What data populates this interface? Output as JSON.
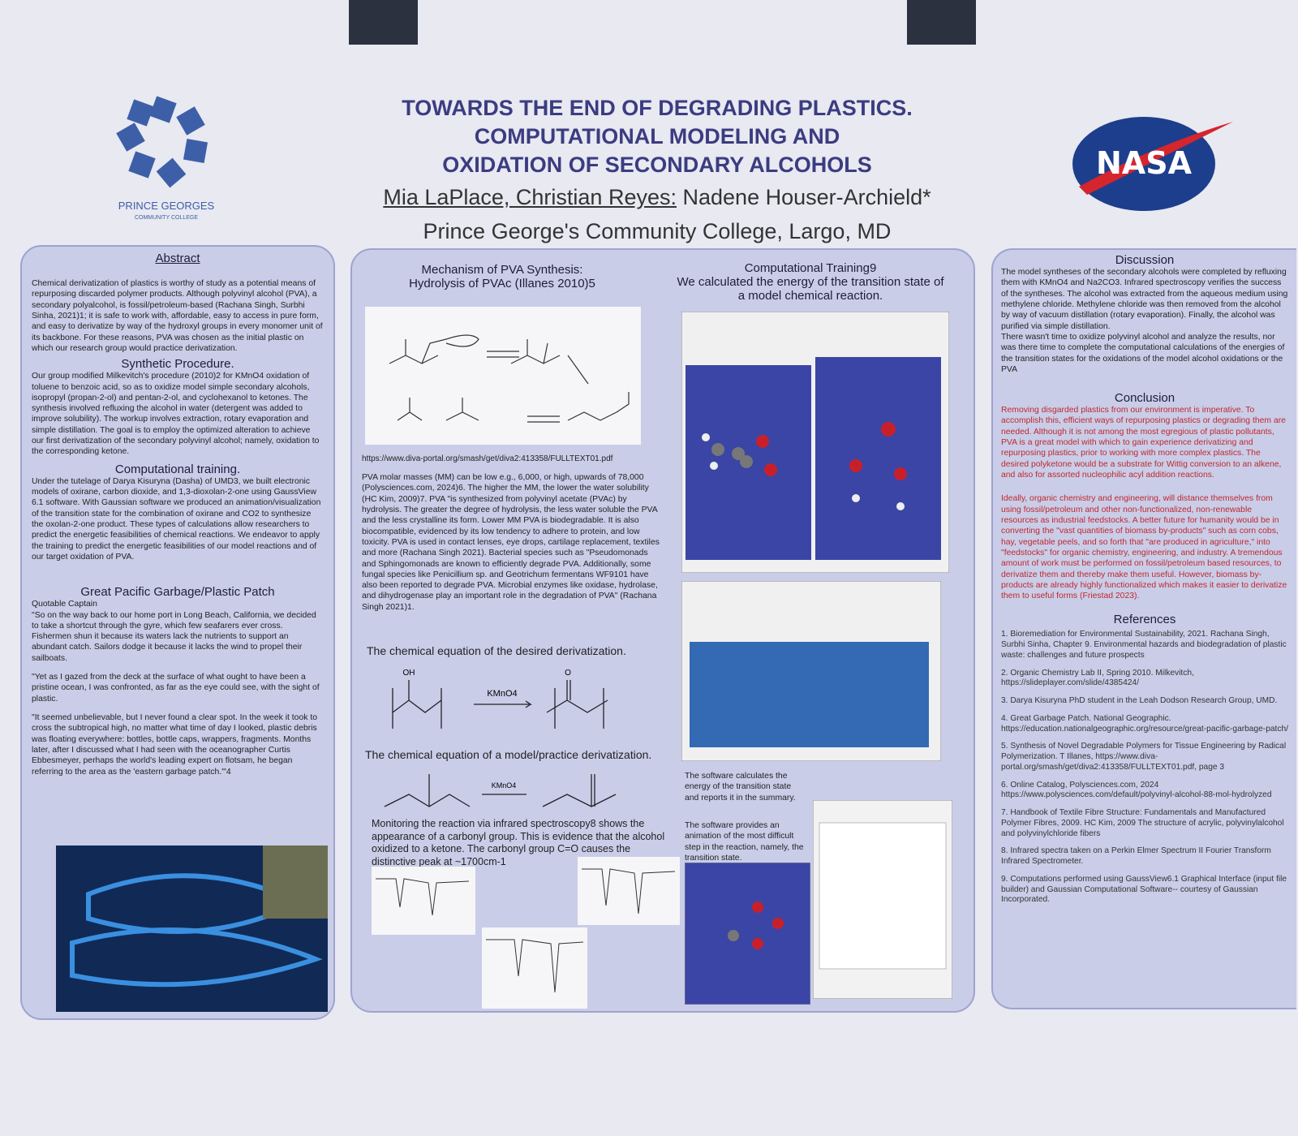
{
  "header": {
    "title_lines": [
      "TOWARDS THE END OF DEGRADING PLASTICS.",
      "COMPUTATIONAL MODELING AND",
      "OXIDATION OF SECONDARY ALCOHOLS"
    ],
    "students": "Mia LaPlace, Christian Reyes:",
    "advisor": "Nadene Houser-Archield*",
    "affiliation": "Prince George's Community College, Largo, MD",
    "left_logo": [
      "PRINCE GEORGES",
      "COMMUNITY COLLEGE"
    ],
    "right_logo": "NASA"
  },
  "left": {
    "abstract_heading": "Abstract",
    "abstract": "Chemical derivatization of plastics is worthy of study as a potential means of repurposing discarded polymer products. Although polyvinyl alcohol (PVA), a secondary polyalcohol, is fossil/petroleum-based (Rachana Singh, Surbhi Sinha, 2021)1; it is safe to work with, affordable, easy to access in pure form, and easy to derivatize by way of the hydroxyl groups in every monomer unit of its backbone. For these reasons, PVA was chosen as the initial plastic on which our research group would practice derivatization.",
    "synthetic_heading": "Synthetic Procedure.",
    "synthetic": "Our group modified Milkevitch's procedure (2010)2 for KMnO4 oxidation of toluene to benzoic acid, so as to oxidize model simple secondary alcohols, isopropyl (propan-2-ol) and pentan-2-ol, and cyclohexanol to ketones. The synthesis involved refluxing the alcohol in water (detergent was added to improve solubility). The workup involves extraction, rotary evaporation and simple distillation. The goal is to employ the optimized alteration to achieve our first derivatization of the secondary polyvinyl alcohol; namely, oxidation to the corresponding ketone.",
    "computational_heading": "Computational training.",
    "computational": "Under the tutelage of Darya Kisuryna (Dasha) of UMD3, we built electronic models of oxirane, carbon dioxide, and 1,3-dioxolan-2-one using GaussView 6.1 software. With Gaussian software we produced an animation/visualization of the transition state for the combination of oxirane and CO2 to synthesize the oxolan-2-one product. These types of calculations allow researchers to predict the energetic feasibilities of chemical reactions. We endeavor to apply the training to predict the energetic feasibilities of our model reactions and of our target oxidation of PVA.",
    "patch_heading": "Great Pacific Garbage/Plastic Patch",
    "patch_sub": "Quotable Captain",
    "quotes": [
      "\"So on the way back to our home port in Long Beach, California, we decided to take a shortcut through the gyre, which few seafarers ever cross. Fishermen shun it because its waters lack the nutrients to support an abundant catch. Sailors dodge it because it lacks the wind to propel their sailboats.",
      "\"Yet as I gazed from the deck at the surface of what ought to have been a pristine ocean, I was confronted, as far as the eye could see, with the sight of plastic.",
      "\"It seemed unbelievable, but I never found a clear spot. In the week it took to cross the subtropical high, no matter what time of day I looked, plastic debris was floating everywhere: bottles, bottle caps, wrappers, fragments. Months later, after I discussed what I had seen with the oceanographer Curtis Ebbesmeyer, perhaps the world's leading expert on flotsam, he began referring to the area as the 'eastern garbage patch.'\"4"
    ]
  },
  "middle": {
    "mechanism_heading": "Mechanism of PVA Synthesis:",
    "mechanism_sub": "Hydrolysis of PVAc (Illanes 2010)5",
    "url": "https://www.diva-portal.org/smash/get/diva2:413358/FULLTEXT01.pdf",
    "pva_text": "PVA molar masses (MM) can be low e.g., 6,000, or high, upwards of 78,000 (Polysciences.com, 2024)6. The higher the MM, the lower the water solubility (HC Kim, 2009)7. PVA \"is synthesized from polyvinyl acetate (PVAc) by hydrolysis. The greater the degree of hydrolysis, the less water soluble the PVA and the less crystalline its form. Lower MM PVA is biodegradable. It is also biocompatible, evidenced by its low tendency to adhere to protein, and low toxicity. PVA is used in contact lenses, eye drops, cartilage replacement, textiles and more (Rachana Singh 2021). Bacterial species such as \"Pseudomonads and Sphingomonads are known to efficiently degrade PVA. Additionally, some fungal species like Penicillium sp. and Geotrichum fermentans WF9101 have also been reported to degrade PVA. Microbial enzymes like oxidase, hydrolase, and dihydrogenase play an important role in the degradation of PVA\" (Rachana Singh 2021)1.",
    "eq1_heading": "The chemical equation of the desired derivatization.",
    "reagent": "KMnO4",
    "eq2_heading": "The chemical equation of a model/practice derivatization.",
    "monitoring": "Monitoring the reaction via infrared spectroscopy8 shows the appearance of a carbonyl group. This is evidence that the alcohol oxidized to a ketone. The carbonyl group C=O causes the distinctive peak at ~1700cm-1"
  },
  "computation": {
    "heading": "Computational Training9",
    "intro": "We calculated the energy of the transition state of a model chemical reaction.",
    "caption1": "The software calculates the energy of the transition state and reports it in the summary.",
    "caption2": "The software provides an animation of the most difficult step in the reaction, namely, the transition state."
  },
  "right": {
    "discussion_heading": "Discussion",
    "discussion": [
      "The model syntheses of the secondary alcohols were completed by refluxing them with KMnO4 and Na2CO3. Infrared spectroscopy verifies the success of the syntheses. The alcohol was extracted from the aqueous medium using methylene chloride. Methylene chloride was then removed from the alcohol by way of vacuum distillation (rotary evaporation). Finally, the alcohol was purified via simple distillation.",
      "There wasn't time to oxidize polyvinyl alcohol and analyze the results, nor was there time to complete the computational calculations of the energies of the transition states for the oxidations of the model alcohol oxidations or the PVA"
    ],
    "conclusion_heading": "Conclusion",
    "conclusion": [
      "Removing disgarded plastics from our environment is imperative. To accomplish this, efficient ways of repurposing plastics or degrading them are needed. Although it is not among the most egregious of plastic pollutants, PVA is a great model with which to gain experience derivatizing and repurposing plastics, prior to working with more complex plastics. The desired polyketone would be a substrate for Wittig conversion to an alkene, and also for assorted nucleophilic acyl addition reactions.",
      "Ideally, organic chemistry and engineering, will distance themselves from using fossil/petroleum and other non-functionalized, non-renewable resources as industrial feedstocks. A better future for humanity would be in converting the \"vast quantities of biomass by-products\" such as corn cobs, hay, vegetable peels, and so forth that \"are produced in agriculture,\" into \"feedstocks\" for organic chemistry, engineering, and industry. A tremendous amount of work must be performed on fossil/petroleum based resources, to derivatize them and thereby make them useful. However, biomass by-products are already highly functionalized which makes it easier to derivatize them to useful forms (Friestad 2023)."
    ],
    "references_heading": "References",
    "references": [
      "1. Bioremediation for Environmental Sustainability, 2021. Rachana Singh, Surbhi Sinha, Chapter 9. Environmental hazards and biodegradation of plastic waste: challenges and future prospects",
      "2. Organic Chemistry Lab II, Spring 2010. Milkevitch, https://slideplayer.com/slide/4385424/",
      "3. Darya Kisuryna PhD student in the Leah Dodson Research Group, UMD.",
      "4. Great Garbage Patch. National Geographic. https://education.nationalgeographic.org/resource/great-pacific-garbage-patch/",
      "5. Synthesis of Novel Degradable Polymers for Tissue Engineering by Radical Polymerization. T Illanes, https://www.diva-portal.org/smash/get/diva2:413358/FULLTEXT01.pdf, page 3",
      "6. Online Catalog, Polysciences.com, 2024 https://www.polysciences.com/default/polyvinyl-alcohol-88-mol-hydrolyzed",
      "7. Handbook of Textile Fibre Structure: Fundamentals and Manufactured Polymer Fibres, 2009. HC Kim, 2009 The structure of acrylic, polyvinylalcohol and polyvinylchloride fibers",
      "8. Infrared spectra taken on a Perkin Elmer Spectrum II Fourier Transform Infrared Spectrometer.",
      "9. Computations performed using GaussView6.1 Graphical Interface (input file builder) and Gaussian Computational Software-- courtesy of Gaussian Incorporated."
    ]
  }
}
